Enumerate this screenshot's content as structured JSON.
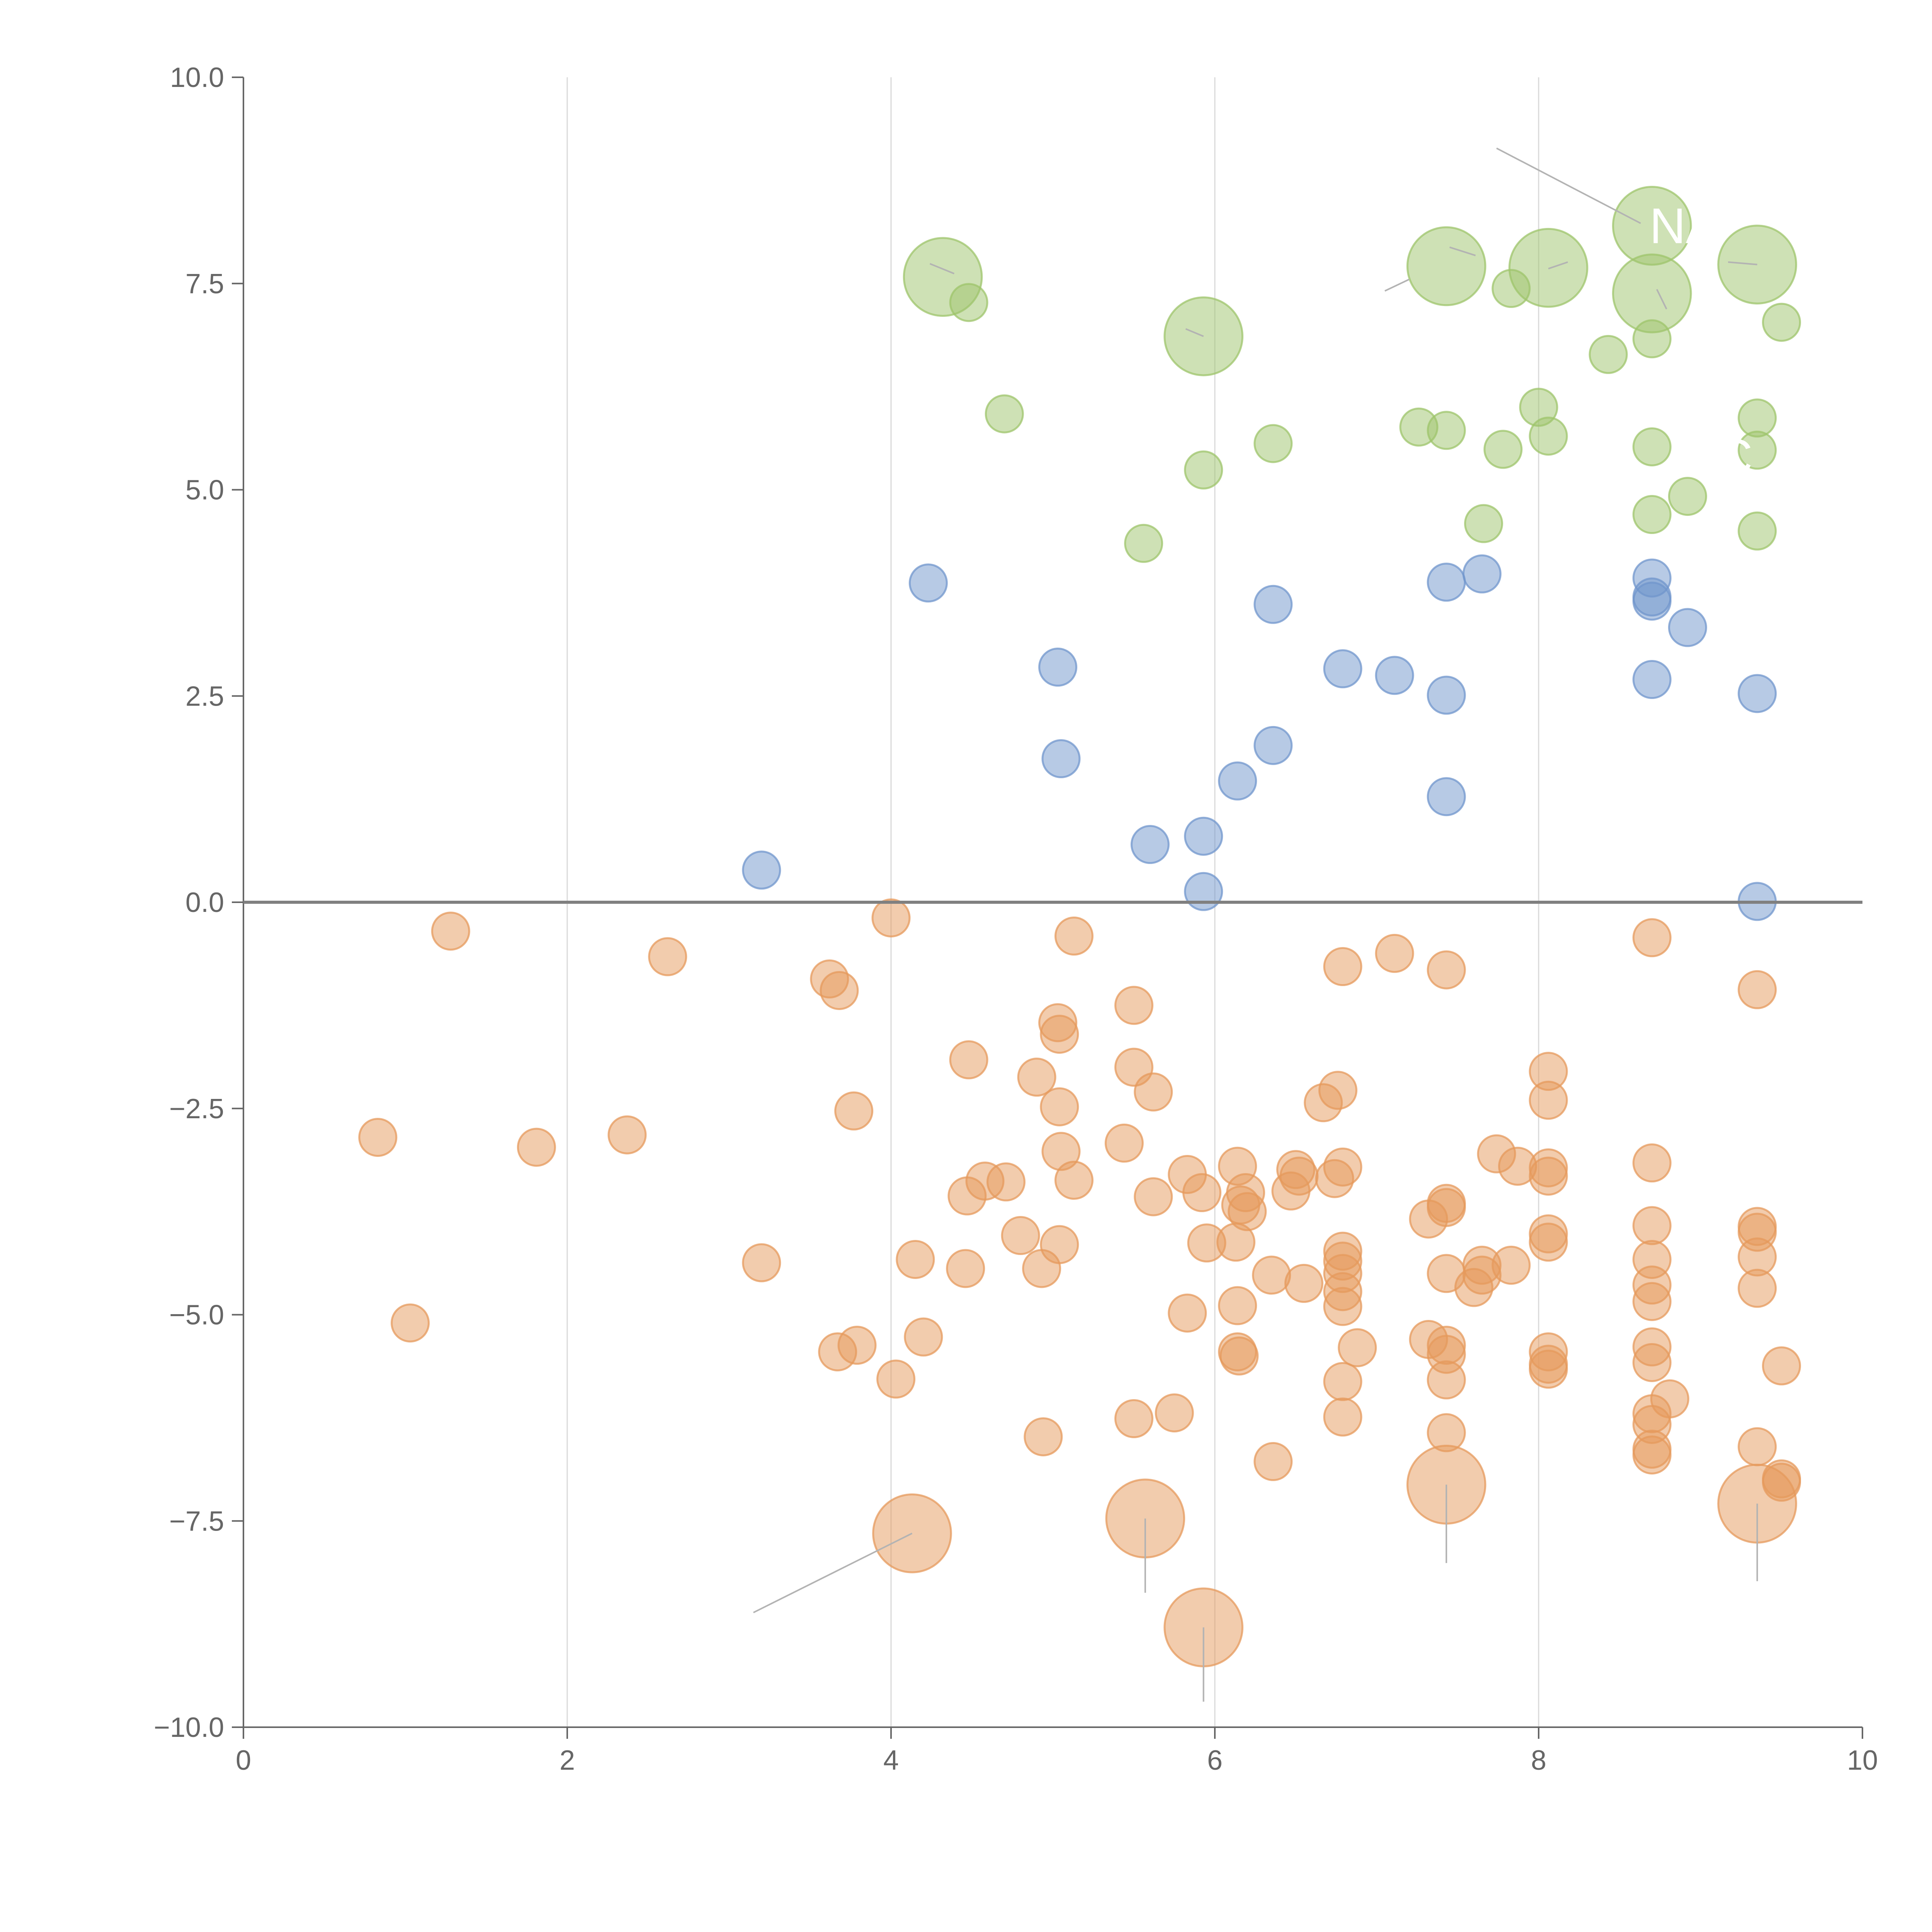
{
  "chart_data": {
    "type": "scatter",
    "title": "",
    "xlabel": "",
    "ylabel": "",
    "xlim": [
      0,
      10
    ],
    "ylim": [
      -10,
      10
    ],
    "x_ticks": [
      0,
      2,
      4,
      6,
      8,
      10
    ],
    "x_tick_labels": [
      "0",
      "2",
      "4",
      "6",
      "8",
      "10"
    ],
    "y_ticks": [
      -10,
      -7.5,
      -5,
      -2.5,
      0,
      2.5,
      5,
      7.5,
      10
    ],
    "y_tick_labels": [
      "−10.0",
      "−7.5",
      "−5.0",
      "−2.5",
      "0.0",
      "2.5",
      "5.0",
      "7.5",
      "10.0"
    ],
    "vertical_grid_at": [
      2,
      4,
      6,
      8
    ],
    "zero_line": 0,
    "colors": {
      "green": "#9dc46b",
      "blue": "#7096cc",
      "orange": "#e69a5c",
      "axis": "#666666",
      "grid": "#d9d9d9"
    },
    "series": [
      {
        "name": "green",
        "color": "#9dc46b",
        "points": [
          [
            4.32,
            7.58,
            2.1
          ],
          [
            4.48,
            7.27,
            1
          ],
          [
            4.7,
            5.92,
            1
          ],
          [
            5.93,
            6.86,
            2.1
          ],
          [
            5.93,
            5.24,
            1
          ],
          [
            5.56,
            4.35,
            1
          ],
          [
            6.36,
            5.56,
            1
          ],
          [
            7.26,
            5.76,
            1
          ],
          [
            7.43,
            5.72,
            1
          ],
          [
            7.43,
            7.71,
            2.1
          ],
          [
            7.83,
            7.44,
            1
          ],
          [
            7.78,
            5.49,
            1
          ],
          [
            7.66,
            4.59,
            1
          ],
          [
            8.06,
            7.69,
            2.1
          ],
          [
            8.0,
            6.0,
            1
          ],
          [
            8.06,
            5.65,
            1
          ],
          [
            8.43,
            6.64,
            1
          ],
          [
            8.7,
            8.2,
            2.1
          ],
          [
            8.7,
            7.38,
            2.1
          ],
          [
            8.7,
            6.83,
            1
          ],
          [
            8.7,
            5.52,
            1
          ],
          [
            8.7,
            4.7,
            1
          ],
          [
            8.92,
            4.92,
            1
          ],
          [
            9.35,
            7.73,
            2.1
          ],
          [
            9.35,
            5.87,
            1
          ],
          [
            9.35,
            5.48,
            1
          ],
          [
            9.35,
            4.5,
            1
          ],
          [
            9.5,
            7.03,
            1
          ]
        ]
      },
      {
        "name": "blue",
        "color": "#7096cc",
        "points": [
          [
            3.2,
            0.39,
            1
          ],
          [
            4.23,
            3.87,
            1
          ],
          [
            5.03,
            2.85,
            1
          ],
          [
            5.05,
            1.74,
            1
          ],
          [
            5.6,
            0.7,
            1
          ],
          [
            5.93,
            0.8,
            1
          ],
          [
            5.93,
            0.13,
            1
          ],
          [
            6.14,
            1.47,
            1
          ],
          [
            6.36,
            3.61,
            1
          ],
          [
            6.36,
            1.9,
            1
          ],
          [
            6.79,
            2.83,
            1
          ],
          [
            7.11,
            2.75,
            1
          ],
          [
            7.43,
            3.88,
            1
          ],
          [
            7.43,
            2.51,
            1
          ],
          [
            7.43,
            1.28,
            1
          ],
          [
            7.65,
            3.98,
            1
          ],
          [
            8.7,
            3.93,
            1
          ],
          [
            8.7,
            3.7,
            1
          ],
          [
            8.7,
            3.65,
            1
          ],
          [
            8.7,
            2.7,
            1
          ],
          [
            8.92,
            3.33,
            1
          ],
          [
            9.35,
            2.53,
            1
          ],
          [
            9.35,
            0.01,
            1
          ]
        ]
      },
      {
        "name": "orange",
        "color": "#e69a5c",
        "points": [
          [
            0.83,
            -2.85,
            1
          ],
          [
            1.03,
            -5.1,
            1
          ],
          [
            1.28,
            -0.35,
            1
          ],
          [
            1.81,
            -2.97,
            1
          ],
          [
            2.37,
            -2.82,
            1
          ],
          [
            2.62,
            -0.66,
            1
          ],
          [
            3.2,
            -4.37,
            1
          ],
          [
            3.62,
            -0.93,
            1
          ],
          [
            3.68,
            -1.07,
            1
          ],
          [
            3.67,
            -5.45,
            1
          ],
          [
            3.77,
            -2.53,
            1
          ],
          [
            3.79,
            -5.37,
            1
          ],
          [
            4.0,
            -0.19,
            1
          ],
          [
            4.03,
            -5.78,
            1
          ],
          [
            4.15,
            -4.33,
            1
          ],
          [
            4.2,
            -5.27,
            1
          ],
          [
            4.13,
            -7.65,
            2.1
          ],
          [
            4.46,
            -4.44,
            1
          ],
          [
            4.47,
            -3.56,
            1
          ],
          [
            4.48,
            -1.91,
            1
          ],
          [
            4.58,
            -3.38,
            1
          ],
          [
            4.71,
            -3.39,
            1
          ],
          [
            4.8,
            -4.04,
            1
          ],
          [
            4.9,
            -2.12,
            1
          ],
          [
            4.93,
            -4.44,
            1
          ],
          [
            4.94,
            -6.48,
            1
          ],
          [
            5.03,
            -1.46,
            1
          ],
          [
            5.04,
            -1.6,
            1
          ],
          [
            5.04,
            -2.48,
            1
          ],
          [
            5.05,
            -3.02,
            1
          ],
          [
            5.04,
            -4.15,
            1
          ],
          [
            5.13,
            -3.37,
            1
          ],
          [
            5.13,
            -0.41,
            1
          ],
          [
            5.44,
            -2.92,
            1
          ],
          [
            5.5,
            -1.25,
            1
          ],
          [
            5.5,
            -2.0,
            1
          ],
          [
            5.5,
            -6.26,
            1
          ],
          [
            5.57,
            -7.47,
            2.1
          ],
          [
            5.62,
            -2.3,
            1
          ],
          [
            5.62,
            -3.57,
            1
          ],
          [
            5.75,
            -6.19,
            1
          ],
          [
            5.83,
            -4.98,
            1
          ],
          [
            5.83,
            -3.3,
            1
          ],
          [
            5.92,
            -3.52,
            1
          ],
          [
            5.93,
            -8.79,
            2.1
          ],
          [
            5.95,
            -4.13,
            1
          ],
          [
            6.13,
            -4.12,
            1
          ],
          [
            6.14,
            -3.2,
            1
          ],
          [
            6.14,
            -4.89,
            1
          ],
          [
            6.14,
            -5.45,
            1
          ],
          [
            6.15,
            -5.5,
            1
          ],
          [
            6.16,
            -3.67,
            1
          ],
          [
            6.19,
            -3.52,
            1
          ],
          [
            6.2,
            -3.75,
            1
          ],
          [
            6.35,
            -4.52,
            1
          ],
          [
            6.36,
            -6.78,
            1
          ],
          [
            6.47,
            -3.5,
            1
          ],
          [
            6.5,
            -3.24,
            1
          ],
          [
            6.52,
            -3.32,
            1
          ],
          [
            6.55,
            -4.62,
            1
          ],
          [
            6.67,
            -2.43,
            1
          ],
          [
            6.76,
            -2.28,
            1
          ],
          [
            6.74,
            -3.35,
            1
          ],
          [
            6.79,
            -0.78,
            1
          ],
          [
            6.79,
            -3.21,
            1
          ],
          [
            6.79,
            -4.23,
            1
          ],
          [
            6.79,
            -4.35,
            1
          ],
          [
            6.79,
            -4.5,
            1
          ],
          [
            6.79,
            -4.72,
            1
          ],
          [
            6.79,
            -4.9,
            1
          ],
          [
            6.79,
            -5.81,
            1
          ],
          [
            6.79,
            -6.24,
            1
          ],
          [
            6.88,
            -5.4,
            1
          ],
          [
            7.11,
            -0.62,
            1
          ],
          [
            7.32,
            -3.84,
            1
          ],
          [
            7.32,
            -5.3,
            1
          ],
          [
            7.43,
            -0.82,
            1
          ],
          [
            7.43,
            -3.65,
            1
          ],
          [
            7.43,
            -3.7,
            1
          ],
          [
            7.43,
            -4.5,
            1
          ],
          [
            7.43,
            -5.37,
            1
          ],
          [
            7.43,
            -5.48,
            1
          ],
          [
            7.43,
            -5.79,
            1
          ],
          [
            7.43,
            -6.43,
            1
          ],
          [
            7.43,
            -7.06,
            2.1
          ],
          [
            7.6,
            -4.67,
            1
          ],
          [
            7.65,
            -4.4,
            1
          ],
          [
            7.65,
            -4.52,
            1
          ],
          [
            7.74,
            -3.05,
            1
          ],
          [
            7.87,
            -3.2,
            1
          ],
          [
            7.83,
            -4.4,
            1
          ],
          [
            8.06,
            -2.05,
            1
          ],
          [
            8.06,
            -2.4,
            1
          ],
          [
            8.06,
            -3.22,
            1
          ],
          [
            8.06,
            -3.32,
            1
          ],
          [
            8.06,
            -4.02,
            1
          ],
          [
            8.06,
            -4.12,
            1
          ],
          [
            8.06,
            -5.45,
            1
          ],
          [
            8.06,
            -5.6,
            1
          ],
          [
            8.06,
            -5.66,
            1
          ],
          [
            8.7,
            -0.43,
            1
          ],
          [
            8.7,
            -3.16,
            1
          ],
          [
            8.7,
            -3.92,
            1
          ],
          [
            8.7,
            -4.33,
            1
          ],
          [
            8.7,
            -4.64,
            1
          ],
          [
            8.7,
            -4.84,
            1
          ],
          [
            8.7,
            -5.39,
            1
          ],
          [
            8.7,
            -5.58,
            1
          ],
          [
            8.7,
            -6.2,
            1
          ],
          [
            8.7,
            -6.33,
            1
          ],
          [
            8.7,
            -6.63,
            1
          ],
          [
            8.7,
            -6.7,
            1
          ],
          [
            8.81,
            -6.02,
            1
          ],
          [
            9.35,
            -1.06,
            1
          ],
          [
            9.35,
            -3.93,
            1
          ],
          [
            9.35,
            -4.0,
            1
          ],
          [
            9.35,
            -4.3,
            1
          ],
          [
            9.35,
            -4.68,
            1
          ],
          [
            9.35,
            -6.6,
            1
          ],
          [
            9.35,
            -7.29,
            2.1
          ],
          [
            9.5,
            -5.62,
            1
          ],
          [
            9.5,
            -6.99,
            1
          ],
          [
            9.5,
            -7.03,
            1
          ]
        ]
      }
    ],
    "callout_lines": [
      [
        7.74,
        9.14,
        8.63,
        8.23
      ],
      [
        7.45,
        7.94,
        7.61,
        7.84
      ],
      [
        7.2,
        7.55,
        7.05,
        7.41
      ],
      [
        8.18,
        7.76,
        8.06,
        7.68
      ],
      [
        9.35,
        7.73,
        9.17,
        7.76
      ],
      [
        8.79,
        7.19,
        8.73,
        7.43
      ],
      [
        5.93,
        6.86,
        5.82,
        6.95
      ],
      [
        4.39,
        7.62,
        4.24,
        7.74
      ],
      [
        4.13,
        -7.65,
        3.15,
        -8.61
      ],
      [
        5.57,
        -7.47,
        5.57,
        -8.37
      ],
      [
        7.43,
        -7.06,
        7.43,
        -8.01
      ],
      [
        9.35,
        -7.29,
        9.35,
        -8.23
      ],
      [
        5.93,
        -8.79,
        5.93,
        -9.69
      ]
    ],
    "annotations": [
      {
        "text": "NA",
        "x": 8.9,
        "y": 8.2
      },
      {
        "text": "C",
        "x": 9.21,
        "y": 5.4
      }
    ]
  }
}
